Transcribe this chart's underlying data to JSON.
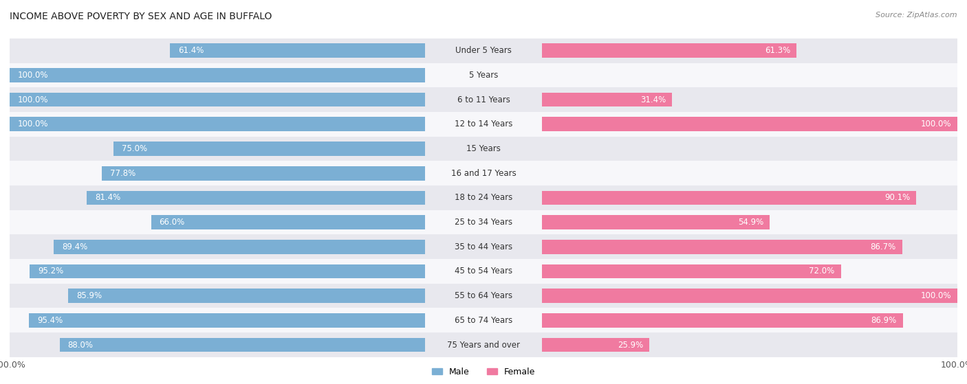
{
  "title": "INCOME ABOVE POVERTY BY SEX AND AGE IN BUFFALO",
  "source": "Source: ZipAtlas.com",
  "categories": [
    "Under 5 Years",
    "5 Years",
    "6 to 11 Years",
    "12 to 14 Years",
    "15 Years",
    "16 and 17 Years",
    "18 to 24 Years",
    "25 to 34 Years",
    "35 to 44 Years",
    "45 to 54 Years",
    "55 to 64 Years",
    "65 to 74 Years",
    "75 Years and over"
  ],
  "male_values": [
    61.4,
    100.0,
    100.0,
    100.0,
    75.0,
    77.8,
    81.4,
    66.0,
    89.4,
    95.2,
    85.9,
    95.4,
    88.0
  ],
  "female_values": [
    61.3,
    0.0,
    31.4,
    100.0,
    0.0,
    0.0,
    90.1,
    54.9,
    86.7,
    72.0,
    100.0,
    86.9,
    25.9
  ],
  "male_color": "#7bafd4",
  "female_color": "#f07aa0",
  "male_color_light": "#aecde6",
  "female_color_light": "#f5adc4",
  "male_label": "Male",
  "female_label": "Female",
  "row_bg_odd": "#e8e8ee",
  "row_bg_even": "#f7f7fa",
  "max_val": 100.0,
  "bar_height": 0.58,
  "label_fontsize": 8.5,
  "title_fontsize": 10,
  "figsize": [
    14.06,
    5.59
  ],
  "dpi": 100
}
